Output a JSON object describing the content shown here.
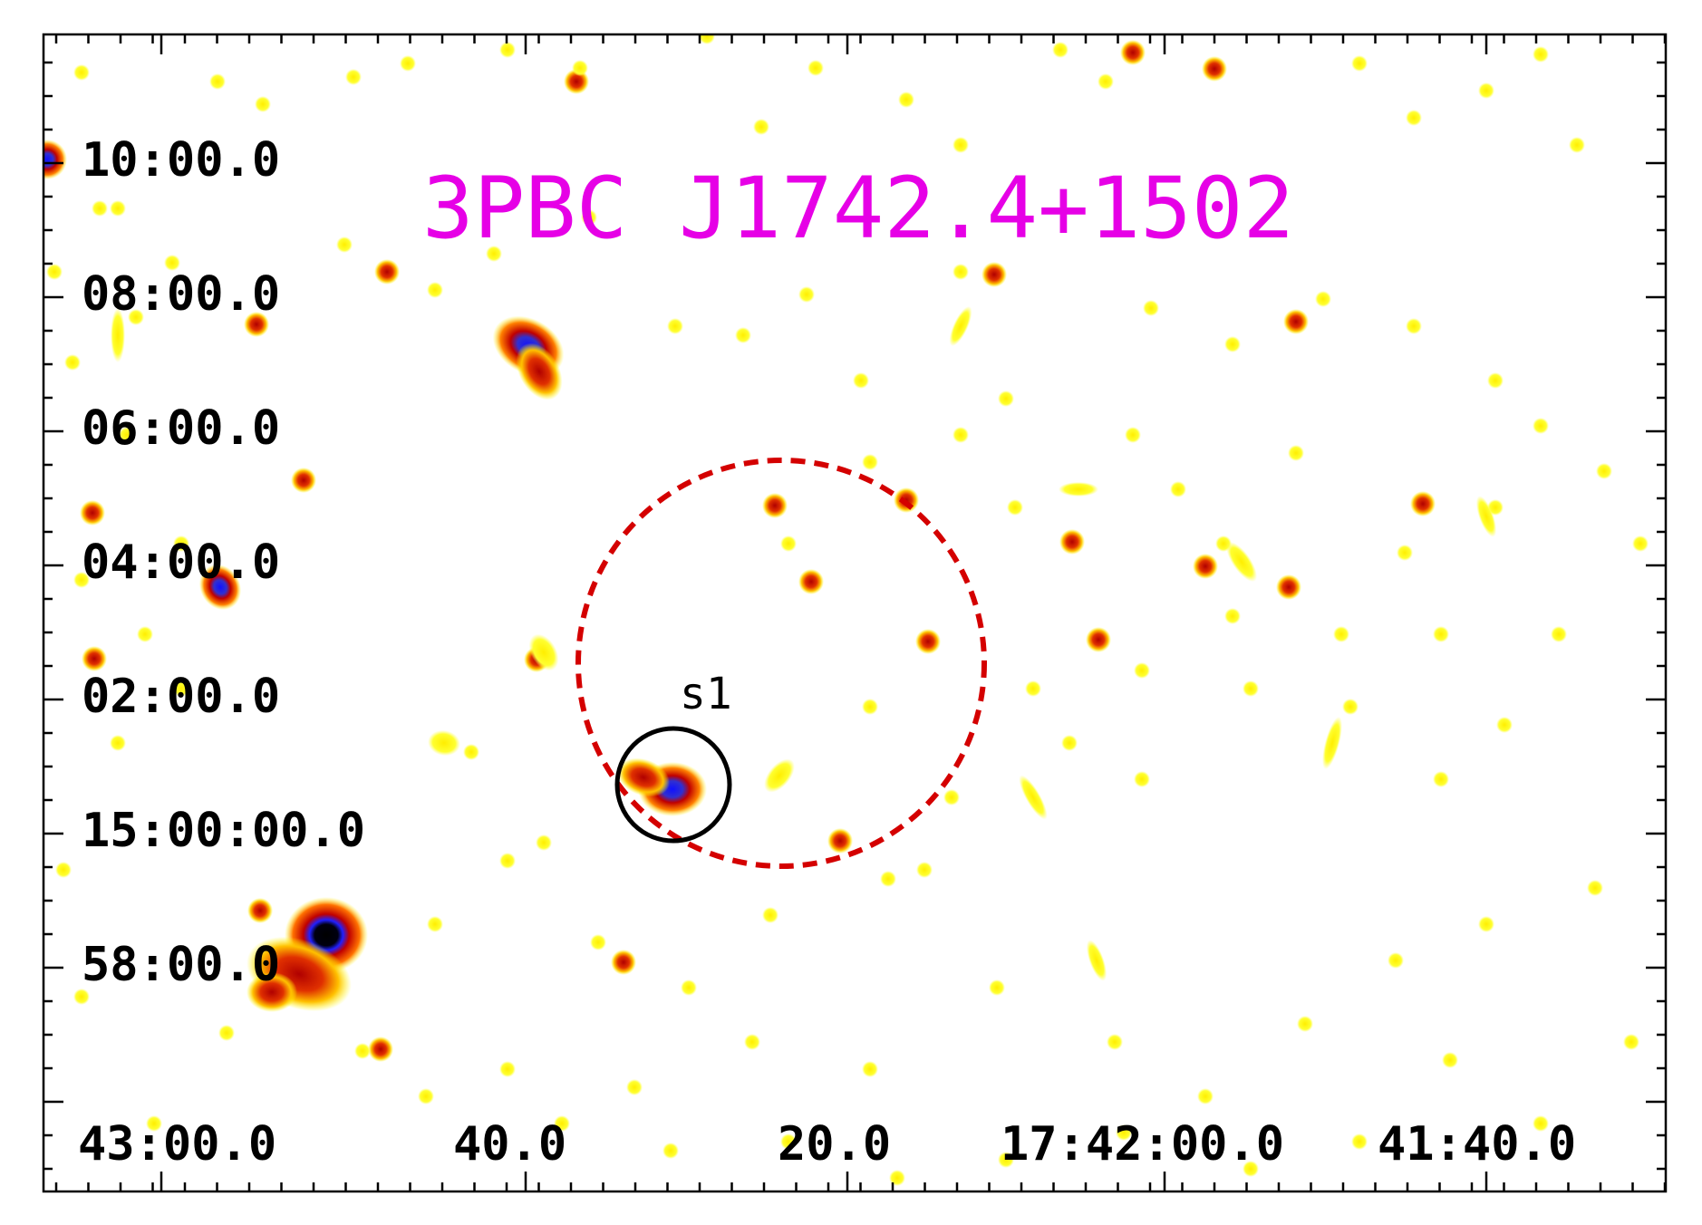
{
  "title": "3PBC J1742.4+1502",
  "source_label": "s1",
  "dec_labels": [
    "10:00.0",
    "08:00.0",
    "06:00.0",
    "04:00.0",
    "02:00.0",
    "15:00:00.0",
    "58:00.0"
  ],
  "ra_labels": [
    "43:00.0",
    "40.0",
    "20.0",
    "17:42:00.0",
    "41:40.0"
  ],
  "colors": {
    "title": "#e600e6",
    "error_ellipse": "#d40000",
    "source_circle": "#000000",
    "map_low": "#ffff00",
    "map_mid": "#c80000",
    "map_high": "#1a1aff",
    "map_peak": "#000000"
  }
}
